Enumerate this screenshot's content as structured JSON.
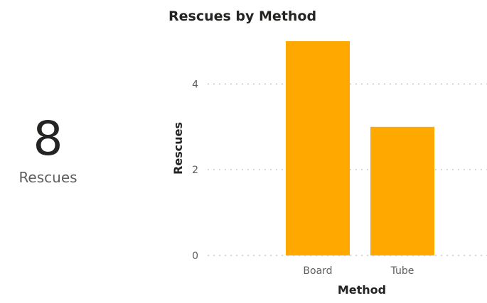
{
  "kpi": {
    "value": "8",
    "label": "Rescues"
  },
  "chart_data": {
    "type": "bar",
    "title": "Rescues by Method",
    "xlabel": "Method",
    "ylabel": "Rescues",
    "categories": [
      "Board",
      "Tube"
    ],
    "values": [
      5,
      3
    ],
    "ylim": [
      0,
      5
    ],
    "yticks": [
      0,
      2,
      4
    ],
    "bar_color": "#FFA800",
    "grid": true
  }
}
